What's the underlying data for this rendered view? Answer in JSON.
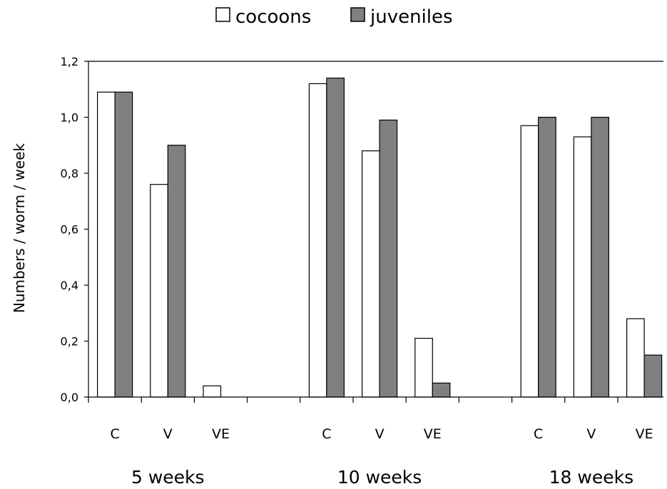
{
  "chart_data": {
    "type": "bar",
    "title": "",
    "xlabel": "",
    "ylabel": "Numbers / worm / week",
    "ylim": [
      0,
      1.2
    ],
    "yticks": [
      "0,0",
      "0,2",
      "0,4",
      "0,6",
      "0,8",
      "1,0",
      "1,2"
    ],
    "yticks_values": [
      0,
      0.2,
      0.4,
      0.6,
      0.8,
      1.0,
      1.2
    ],
    "grid": false,
    "legend_position": "top-center",
    "groups": [
      "5 weeks",
      "10 weeks",
      "18 weeks"
    ],
    "categories": [
      "C",
      "V",
      "VE",
      "C",
      "V",
      "VE",
      "C",
      "V",
      "VE"
    ],
    "series": [
      {
        "name": "cocoons",
        "color": "#ffffff",
        "values": [
          1.09,
          0.76,
          0.04,
          1.12,
          0.88,
          0.21,
          0.97,
          0.93,
          0.28
        ]
      },
      {
        "name": "juveniles",
        "color": "#808080",
        "values": [
          1.09,
          0.9,
          0.0,
          1.14,
          0.99,
          0.05,
          1.0,
          1.0,
          0.15
        ]
      }
    ]
  }
}
